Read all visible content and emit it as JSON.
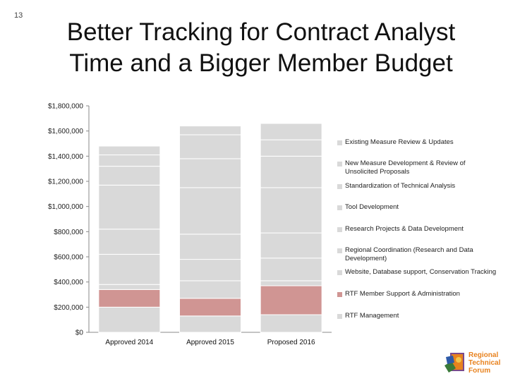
{
  "slide": {
    "number": "13",
    "title_line1": "Better Tracking for Contract Analyst",
    "title_line2": "Time and a Bigger Member Budget"
  },
  "chart_data": {
    "type": "bar",
    "stacked": true,
    "title": "",
    "xlabel": "",
    "ylabel": "",
    "categories": [
      "Approved 2014",
      "Approved 2015",
      "Proposed 2016"
    ],
    "y_ticks": [
      "$0",
      "$200,000",
      "$400,000",
      "$600,000",
      "$800,000",
      "$1,000,000",
      "$1,200,000",
      "$1,400,000",
      "$1,600,000",
      "$1,800,000"
    ],
    "ylim": [
      0,
      1800000
    ],
    "series": [
      {
        "name": "RTF Management",
        "values": [
          200000,
          130000,
          140000
        ],
        "color": "#d9d9d9"
      },
      {
        "name": "RTF Member Support & Administration",
        "values": [
          140000,
          140000,
          230000
        ],
        "color": "#d09593"
      },
      {
        "name": "Website, Database support, Conservation Tracking",
        "values": [
          40000,
          140000,
          40000
        ],
        "color": "#d9d9d9"
      },
      {
        "name": "Regional Coordination (Research and Data Development)",
        "values": [
          240000,
          170000,
          180000
        ],
        "color": "#d9d9d9"
      },
      {
        "name": "Research Projects & Data Development",
        "values": [
          200000,
          200000,
          200000
        ],
        "color": "#d9d9d9"
      },
      {
        "name": "Tool Development",
        "values": [
          350000,
          370000,
          360000
        ],
        "color": "#d9d9d9"
      },
      {
        "name": "Standardization of Technical Analysis",
        "values": [
          150000,
          230000,
          250000
        ],
        "color": "#d9d9d9"
      },
      {
        "name": "New Measure Development & Review of Unsolicited Proposals",
        "values": [
          90000,
          190000,
          130000
        ],
        "color": "#d9d9d9"
      },
      {
        "name": "Existing Measure Review & Updates",
        "values": [
          70000,
          70000,
          130000
        ],
        "color": "#d9d9d9"
      }
    ],
    "legend": [
      {
        "label": "Existing Measure Review & Updates",
        "color": "#d9d9d9"
      },
      {
        "label": "New Measure Development & Review of Unsolicited Proposals",
        "color": "#d9d9d9"
      },
      {
        "label": "Standardization of Technical Analysis",
        "color": "#d9d9d9"
      },
      {
        "label": "Tool Development",
        "color": "#d9d9d9"
      },
      {
        "label": "Research Projects & Data Development",
        "color": "#d9d9d9"
      },
      {
        "label": "Regional Coordination (Research and Data Development)",
        "color": "#d9d9d9"
      },
      {
        "label": "Website, Database support, Conservation Tracking",
        "color": "#d9d9d9"
      },
      {
        "label": "RTF Member Support & Administration",
        "color": "#d09593"
      },
      {
        "label": "RTF Management",
        "color": "#d9d9d9"
      }
    ],
    "legend_position": "right"
  },
  "logo": {
    "line1": "Regional",
    "line2": "Technical",
    "line3": "Forum"
  }
}
